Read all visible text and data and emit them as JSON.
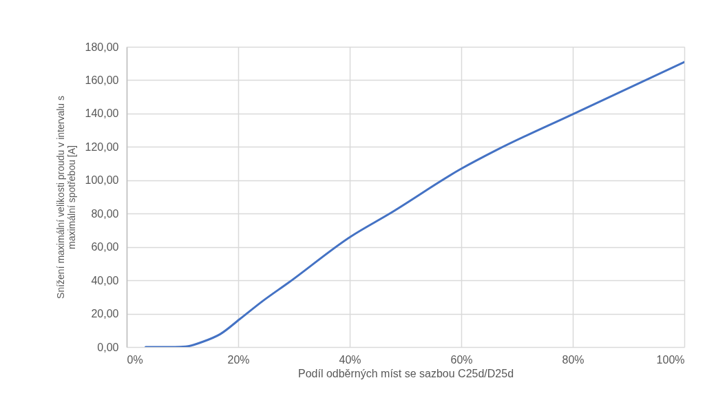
{
  "chart_data": {
    "type": "line",
    "xlabel": "Podíl odběrných míst se sazbou C25d/D25d",
    "ylabel": "Snížení maximální  velikosti proudu v intervalu s\nmaximální spotřebou [A]",
    "x": [
      3.4,
      8.1,
      10.6,
      13.5,
      16.8,
      20.3,
      24.2,
      29.1,
      40.2,
      47.2,
      60.0,
      66.2,
      80.0,
      100.0
    ],
    "series": [
      {
        "color": "#4472c4",
        "values": [
          0,
          0,
          0.3,
          3.0,
          7.8,
          16.8,
          27.1,
          38.8,
          66.3,
          80.1,
          106.9,
          117.9,
          139.6,
          170.9
        ]
      }
    ],
    "xlim": [
      0,
      100
    ],
    "xticks": [
      {
        "value": 0,
        "label": "0%"
      },
      {
        "value": 20,
        "label": "20%"
      },
      {
        "value": 40,
        "label": "40%"
      },
      {
        "value": 60,
        "label": "60%"
      },
      {
        "value": 80,
        "label": "80%"
      },
      {
        "value": 100,
        "label": "100%"
      }
    ],
    "ylim": [
      0,
      180
    ],
    "yticks": [
      {
        "value": 0,
        "label": "0,00"
      },
      {
        "value": 20,
        "label": "20,00"
      },
      {
        "value": 40,
        "label": "40,00"
      },
      {
        "value": 60,
        "label": "60,00"
      },
      {
        "value": 80,
        "label": "80,00"
      },
      {
        "value": 100,
        "label": "100,00"
      },
      {
        "value": 120,
        "label": "120,00"
      },
      {
        "value": 140,
        "label": "140,00"
      },
      {
        "value": 160,
        "label": "160,00"
      },
      {
        "value": 180,
        "label": "180,00"
      }
    ],
    "grid": true,
    "marker": "none",
    "line_style": "solid"
  }
}
